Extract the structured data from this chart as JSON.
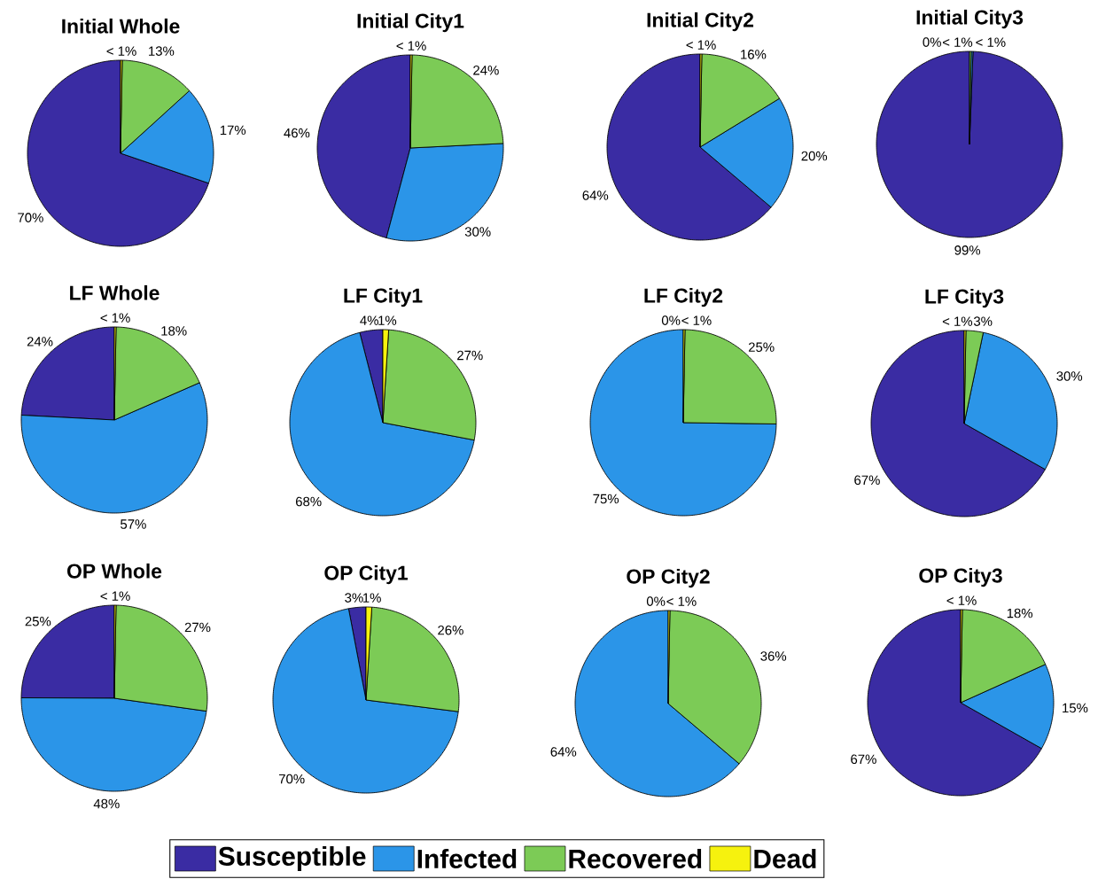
{
  "chart_data": [
    {
      "type": "pie",
      "title": "Initial Whole",
      "categories": [
        "Susceptible",
        "Infected",
        "Recovered",
        "Dead"
      ],
      "values": [
        70,
        17,
        13,
        0.3
      ],
      "value_labels": [
        "70%",
        "17%",
        "13%",
        "< 1%"
      ],
      "colors": [
        "#3a2ca3",
        "#2b95e8",
        "#7ccb56",
        "#f6f20e"
      ],
      "legend": "bottom"
    },
    {
      "type": "pie",
      "title": "Initial City1",
      "values": [
        46,
        30,
        24,
        0.3
      ],
      "value_labels": [
        "46%",
        "30%",
        "24%",
        "< 1%"
      ],
      "colors": [
        "#3a2ca3",
        "#2b95e8",
        "#7ccb56",
        "#f6f20e"
      ]
    },
    {
      "type": "pie",
      "title": "Initial City2",
      "values": [
        64,
        20,
        16,
        0.3
      ],
      "value_labels": [
        "64%",
        "20%",
        "16%",
        "< 1%"
      ],
      "colors": [
        "#3a2ca3",
        "#2b95e8",
        "#7ccb56",
        "#f6f20e"
      ]
    },
    {
      "type": "pie",
      "title": "Initial City3",
      "values": [
        99,
        0.3,
        0.3,
        0
      ],
      "value_labels": [
        "99%",
        "< 1%",
        "< 1%",
        "0%"
      ],
      "colors": [
        "#3a2ca3",
        "#2b95e8",
        "#7ccb56",
        "#f6f20e"
      ]
    },
    {
      "type": "pie",
      "title": "LF Whole",
      "values": [
        24,
        57,
        18,
        0.3
      ],
      "value_labels": [
        "24%",
        "57%",
        "18%",
        "< 1%"
      ],
      "colors": [
        "#3a2ca3",
        "#2b95e8",
        "#7ccb56",
        "#f6f20e"
      ]
    },
    {
      "type": "pie",
      "title": "LF City1",
      "values": [
        4,
        68,
        27,
        1
      ],
      "value_labels": [
        "4%",
        "68%",
        "27%",
        "1%"
      ],
      "colors": [
        "#3a2ca3",
        "#2b95e8",
        "#7ccb56",
        "#f6f20e"
      ]
    },
    {
      "type": "pie",
      "title": "LF City2",
      "values": [
        0,
        75,
        25,
        0.3
      ],
      "value_labels": [
        "0%",
        "75%",
        "25%",
        "< 1%"
      ],
      "colors": [
        "#3a2ca3",
        "#2b95e8",
        "#7ccb56",
        "#f6f20e"
      ]
    },
    {
      "type": "pie",
      "title": "LF City3",
      "values": [
        67,
        30,
        3,
        0.3
      ],
      "value_labels": [
        "67%",
        "30%",
        "3%",
        "< 1%"
      ],
      "colors": [
        "#3a2ca3",
        "#2b95e8",
        "#7ccb56",
        "#f6f20e"
      ]
    },
    {
      "type": "pie",
      "title": "OP Whole",
      "values": [
        25,
        48,
        27,
        0.3
      ],
      "value_labels": [
        "25%",
        "48%",
        "27%",
        "< 1%"
      ],
      "colors": [
        "#3a2ca3",
        "#2b95e8",
        "#7ccb56",
        "#f6f20e"
      ]
    },
    {
      "type": "pie",
      "title": "OP City1",
      "values": [
        3,
        70,
        26,
        1
      ],
      "value_labels": [
        "3%",
        "70%",
        "26%",
        "1%"
      ],
      "colors": [
        "#3a2ca3",
        "#2b95e8",
        "#7ccb56",
        "#f6f20e"
      ]
    },
    {
      "type": "pie",
      "title": "OP City2",
      "values": [
        0,
        64,
        36,
        0.3
      ],
      "value_labels": [
        "0%",
        "64%",
        "36%",
        "< 1%"
      ],
      "colors": [
        "#3a2ca3",
        "#2b95e8",
        "#7ccb56",
        "#f6f20e"
      ]
    },
    {
      "type": "pie",
      "title": "OP City3",
      "values": [
        67,
        15,
        18,
        0.3
      ],
      "value_labels": [
        "67%",
        "15%",
        "18%",
        "< 1%"
      ],
      "colors": [
        "#3a2ca3",
        "#2b95e8",
        "#7ccb56",
        "#f6f20e"
      ]
    }
  ]
}
